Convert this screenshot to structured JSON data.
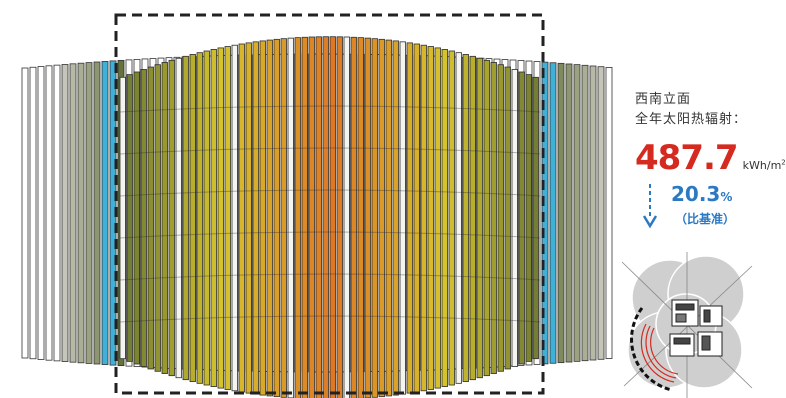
{
  "facade_label": "西南立面",
  "metric_label": "全年太阳热辐射：",
  "radiation_value": "487.7",
  "radiation_unit": "kWh/m",
  "radiation_unit_sup": "2",
  "reduction_value": "20.3",
  "reduction_symbol": "%",
  "reference_label": "（比基准）",
  "colors": {
    "value_red": "#d42a20",
    "blue": "#2b79c2",
    "fin_cyan": "#3fb0d8",
    "frame": "#222222"
  },
  "icons": [
    "down-arrow-icon"
  ]
}
